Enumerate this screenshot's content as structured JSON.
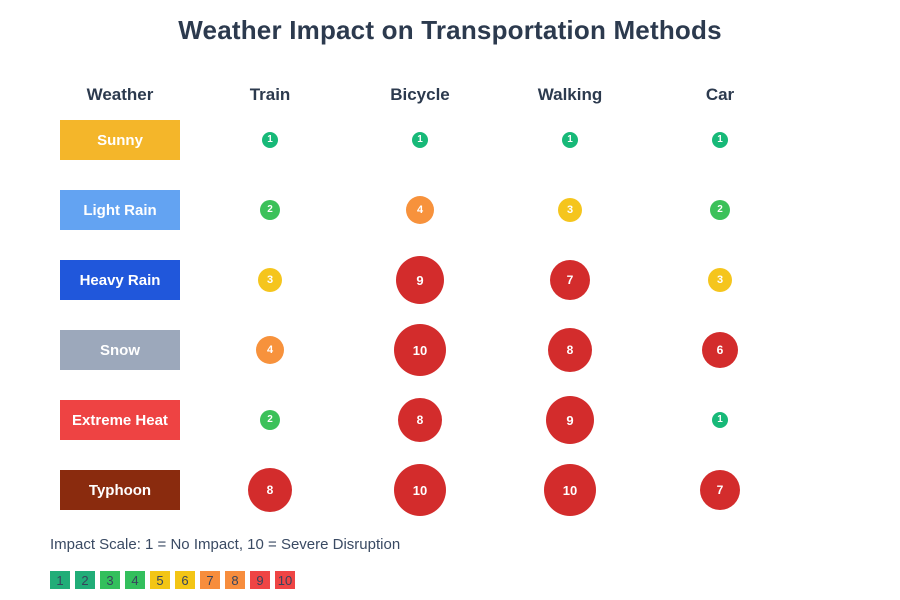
{
  "page": {
    "title": "Weather Impact on Transportation Methods",
    "scale_note": "Impact Scale: 1 = No Impact, 10 = Severe Disruption"
  },
  "table": {
    "weather_header": "Weather"
  },
  "chart_data": {
    "type": "heatmap",
    "title": "Weather Impact on Transportation Methods",
    "columns": [
      "Train",
      "Bicycle",
      "Walking",
      "Car"
    ],
    "rows": [
      {
        "label": "Sunny",
        "color": "#F4B62A",
        "values": [
          1,
          1,
          1,
          1
        ]
      },
      {
        "label": "Light Rain",
        "color": "#63A3F2",
        "values": [
          2,
          4,
          3,
          2
        ]
      },
      {
        "label": "Heavy Rain",
        "color": "#2057DB",
        "values": [
          3,
          9,
          7,
          3
        ]
      },
      {
        "label": "Snow",
        "color": "#9CA8BB",
        "values": [
          4,
          10,
          8,
          6
        ]
      },
      {
        "label": "Extreme Heat",
        "color": "#EE4343",
        "values": [
          2,
          8,
          9,
          1
        ]
      },
      {
        "label": "Typhoon",
        "color": "#8A2B0E",
        "values": [
          8,
          10,
          10,
          7
        ]
      }
    ],
    "value_scale": {
      "min": 1,
      "max": 10,
      "min_label": "No Impact",
      "max_label": "Severe Disruption"
    },
    "bubble_colors_by_value": {
      "1": "#17B978",
      "2": "#3BC159",
      "3": "#F5C51D",
      "4": "#F7923C",
      "5": "#F7923C",
      "6": "#D32C2C",
      "7": "#D32C2C",
      "8": "#D32C2C",
      "9": "#D32C2C",
      "10": "#D32C2C"
    },
    "legend": {
      "values": [
        1,
        2,
        3,
        4,
        5,
        6,
        7,
        8,
        9,
        10
      ],
      "colors": [
        "#21AD78",
        "#21AD78",
        "#33BF5C",
        "#33BF5C",
        "#F3C515",
        "#F3C515",
        "#F78D3D",
        "#F78D3D",
        "#EF4545",
        "#EF4545"
      ]
    },
    "text_color": "#2C3A4E",
    "legend_position": "bottom-left",
    "grid": false
  }
}
